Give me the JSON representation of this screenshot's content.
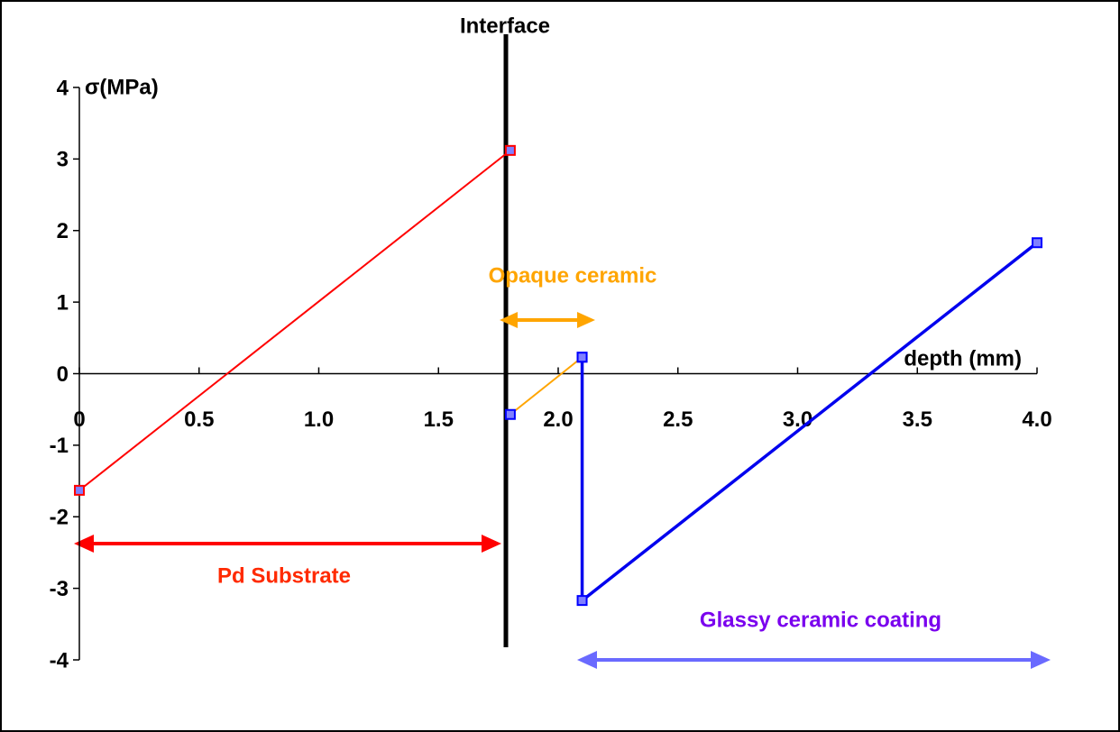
{
  "chart_data": {
    "type": "line",
    "y_label": "σ(MPa)",
    "x_label": "depth (mm)",
    "xlim": [
      0,
      4
    ],
    "ylim": [
      -4,
      4
    ],
    "xticks": [
      0,
      0.5,
      {
        "value": 1,
        "label": "1.0"
      },
      1.5,
      {
        "value": 2,
        "label": "2.0"
      },
      2.5,
      {
        "value": 3,
        "label": "3.0"
      },
      3.5,
      {
        "value": 4,
        "label": "4.0"
      }
    ],
    "yticks": [
      -4,
      -3,
      -2,
      -1,
      0,
      1,
      2,
      3,
      4
    ],
    "series": [
      {
        "color": "#ff0000",
        "marker_color": "#ff0000",
        "x": [
          0,
          1.8
        ],
        "values": [
          -1.63,
          3.12
        ]
      },
      {
        "color": "#ffa500",
        "marker_color": "#0000ff",
        "x": [
          1.8,
          2.1
        ],
        "values": [
          -0.57,
          0.23
        ]
      },
      {
        "color": "#0000ee",
        "marker_color": "#0000ff",
        "x": [
          2.1,
          2.1,
          4.0
        ],
        "values": [
          0.23,
          -3.17,
          1.83
        ]
      }
    ],
    "annotations": [
      {
        "text": "Interface",
        "color": "#000000"
      },
      {
        "text": "Opaque ceramic",
        "color": "#ffa500"
      },
      {
        "text": "Pd Substrate",
        "color": "#ff2a00"
      },
      {
        "text": "Glassy ceramic coating",
        "color": "#7a00ee"
      }
    ]
  }
}
